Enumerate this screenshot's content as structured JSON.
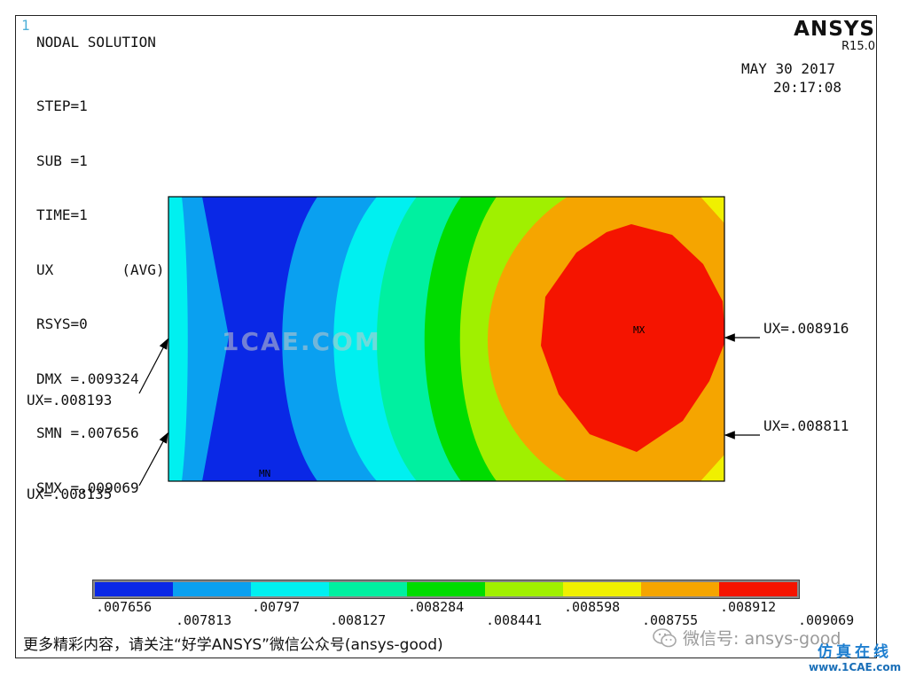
{
  "window": {
    "number": "1",
    "title": "NODAL SOLUTION"
  },
  "logo": {
    "name": "ANSYS",
    "version": "R15.0"
  },
  "timestamp": {
    "date": "MAY 30 2017",
    "time": "20:17:08"
  },
  "solution_info": [
    "STEP=1",
    "SUB =1",
    "TIME=1",
    "UX        (AVG)",
    "RSYS=0",
    "DMX =.009324",
    "SMN =.007656",
    "SMX =.009069"
  ],
  "markers": {
    "min": "MN",
    "max": "MX"
  },
  "watermark": "1CAE.COM",
  "annotations": [
    {
      "id": "left-upper",
      "label": "UX=.008193"
    },
    {
      "id": "left-lower",
      "label": "UX=.008135"
    },
    {
      "id": "right-upper",
      "label": "UX=.008916"
    },
    {
      "id": "right-lower",
      "label": "UX=.008811"
    }
  ],
  "legend": {
    "colors": [
      "#0a28e6",
      "#0aa0f0",
      "#00f0f0",
      "#00f0a0",
      "#00dc00",
      "#a0f000",
      "#f0f000",
      "#f5a500",
      "#f51400"
    ],
    "labels": [
      ".007656",
      ".007813",
      ".00797",
      ".008127",
      ".008284",
      ".008441",
      ".008598",
      ".008755",
      ".008912",
      ".009069"
    ]
  },
  "footer": {
    "text": "更多精彩内容，请关注“好学ANSYS”微信公众号(ansys-good)",
    "wechat": "微信号: ansys-good",
    "site_cn": "仿真在线",
    "site_url": "www.1CAE.com"
  }
}
